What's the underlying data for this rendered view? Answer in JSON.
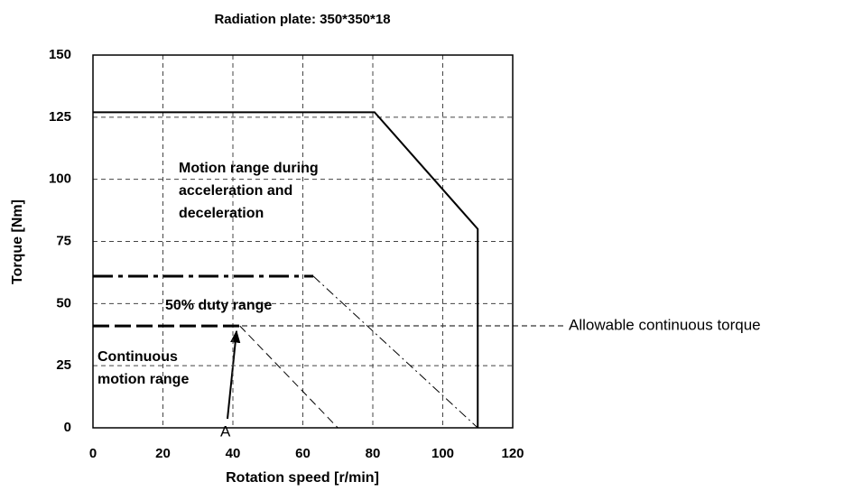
{
  "chart_data": {
    "type": "line",
    "title": "Radiation plate: 350*350*18",
    "xlabel": "Rotation speed [r/min]",
    "ylabel": "Torque [Nm]",
    "xlim": [
      0,
      120
    ],
    "xticks": [
      0,
      20,
      40,
      60,
      80,
      100,
      120
    ],
    "ylim": [
      0,
      150
    ],
    "yticks": [
      0,
      25,
      50,
      75,
      100,
      125,
      150
    ],
    "grid": true,
    "series": [
      {
        "color": "#000000",
        "style": "solid",
        "width": 2,
        "x": [
          0,
          80.5,
          110,
          110
        ],
        "values": [
          127,
          127,
          80,
          0
        ]
      },
      {
        "color": "#000000",
        "style": "dash-dot",
        "width": 3,
        "x": [
          0,
          63
        ],
        "values": [
          61,
          61
        ]
      },
      {
        "color": "#000000",
        "style": "dash-dot",
        "width": 1,
        "x": [
          63,
          110
        ],
        "values": [
          61,
          0
        ]
      },
      {
        "color": "#000000",
        "style": "dash",
        "width": 3,
        "x": [
          0,
          42
        ],
        "values": [
          41,
          41
        ]
      },
      {
        "color": "#000000",
        "style": "dash",
        "width": 1,
        "x": [
          42,
          70
        ],
        "values": [
          41,
          0
        ]
      }
    ],
    "annotations": [
      "Motion range during",
      "acceleration and",
      "deceleration",
      "50% duty range",
      "Continuous",
      "motion range",
      "A",
      "Allowable continuous torque"
    ]
  }
}
